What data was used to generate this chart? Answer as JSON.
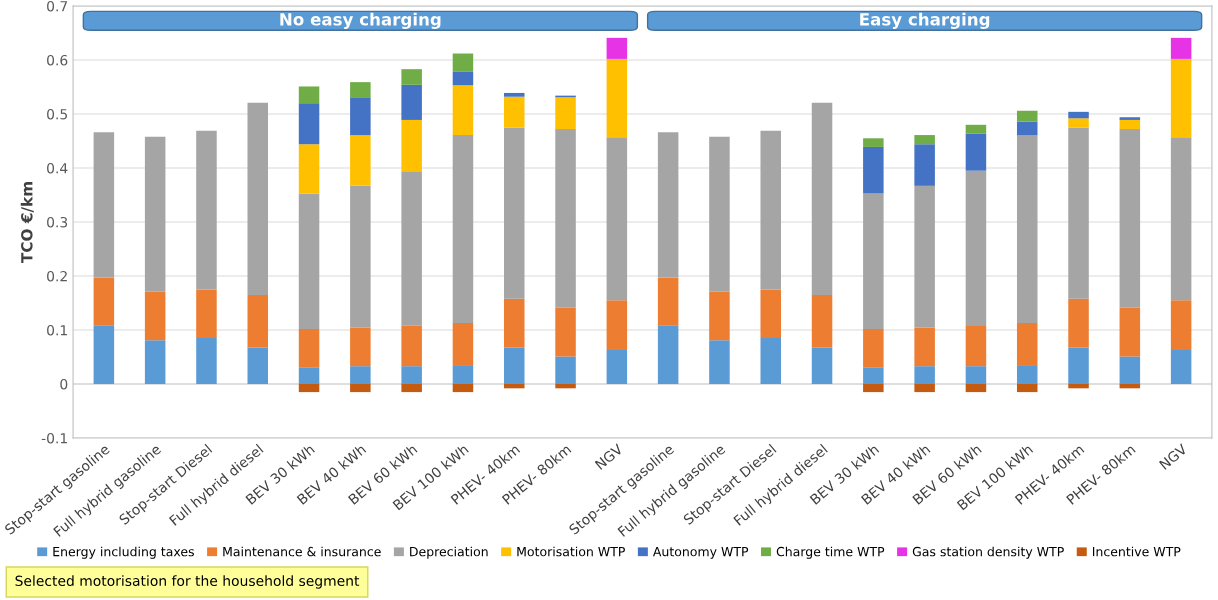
{
  "chart_data": {
    "type": "bar",
    "stacked": true,
    "ylabel": "TCO €/km",
    "categories": [
      "Stop-start gasoline",
      "Full hybrid gasoline",
      "Stop-start Diesel",
      "Full hybrid diesel",
      "BEV 30 kWh",
      "BEV 40 kWh",
      "BEV 60 kWh",
      "BEV 100 kWh",
      "PHEV- 40km",
      "PHEV- 80km",
      "NGV",
      "Stop-start gasoline",
      "Full hybrid gasoline",
      "Stop-start Diesel",
      "Full hybrid diesel",
      "BEV 30 kWh",
      "BEV 40 kWh",
      "BEV 60 kWh",
      "BEV 100 kWh",
      "PHEV- 40km",
      "PHEV- 80km",
      "NGV"
    ],
    "series": [
      {
        "name": "Energy including taxes",
        "color": "#5b9bd5",
        "values": [
          0.109,
          0.081,
          0.085,
          0.067,
          0.031,
          0.033,
          0.033,
          0.035,
          0.067,
          0.051,
          0.063,
          0.109,
          0.081,
          0.085,
          0.067,
          0.031,
          0.033,
          0.033,
          0.035,
          0.067,
          0.051,
          0.063
        ]
      },
      {
        "name": "Maintenance & insurance",
        "color": "#ed7d31",
        "values": [
          0.088,
          0.09,
          0.09,
          0.098,
          0.071,
          0.071,
          0.075,
          0.078,
          0.091,
          0.09,
          0.092,
          0.088,
          0.09,
          0.09,
          0.098,
          0.071,
          0.071,
          0.076,
          0.078,
          0.091,
          0.09,
          0.092
        ]
      },
      {
        "name": "Depreciation",
        "color": "#a5a5a5",
        "values": [
          0.269,
          0.287,
          0.294,
          0.356,
          0.251,
          0.263,
          0.286,
          0.348,
          0.317,
          0.331,
          0.302,
          0.269,
          0.287,
          0.294,
          0.356,
          0.251,
          0.263,
          0.286,
          0.348,
          0.317,
          0.331,
          0.302
        ]
      },
      {
        "name": "Motorisation WTP",
        "color": "#ffc000",
        "values": [
          null,
          null,
          null,
          null,
          0.091,
          0.094,
          0.095,
          0.092,
          0.057,
          0.059,
          0.145,
          null,
          null,
          null,
          null,
          null,
          null,
          null,
          null,
          0.017,
          0.017,
          0.145
        ]
      },
      {
        "name": "Autonomy WTP",
        "color": "#4472c4",
        "values": [
          null,
          null,
          null,
          null,
          0.076,
          0.07,
          0.065,
          0.025,
          0.007,
          0.003,
          null,
          null,
          null,
          null,
          null,
          0.086,
          0.077,
          0.069,
          0.025,
          0.012,
          0.005,
          null
        ]
      },
      {
        "name": "Charge time WTP",
        "color": "#70ad47",
        "values": [
          null,
          null,
          null,
          null,
          0.031,
          0.028,
          0.029,
          0.034,
          null,
          null,
          null,
          null,
          null,
          null,
          null,
          0.016,
          0.017,
          0.016,
          0.02,
          null,
          null,
          null
        ]
      },
      {
        "name": "Gas station density WTP",
        "color": "#e633e6",
        "values": [
          null,
          null,
          null,
          null,
          null,
          null,
          null,
          null,
          null,
          null,
          0.039,
          null,
          null,
          null,
          null,
          null,
          null,
          null,
          null,
          null,
          null,
          0.039
        ]
      },
      {
        "name": "Incentive WTP",
        "color": "#c55a11",
        "values": [
          null,
          null,
          null,
          null,
          -0.015,
          -0.015,
          -0.015,
          -0.015,
          -0.008,
          -0.008,
          null,
          null,
          null,
          null,
          null,
          -0.015,
          -0.015,
          -0.015,
          -0.015,
          -0.008,
          -0.008,
          null
        ]
      }
    ],
    "ylim": [
      -0.1,
      0.7
    ],
    "yticks": [
      {
        "value": -0.1,
        "label": "-0.1"
      },
      0,
      0.1,
      0.2,
      0.3,
      0.4,
      0.5,
      0.6,
      0.7
    ],
    "grid": "y",
    "legend": "bottom",
    "annotations": [
      "No easy charging",
      "Easy charging",
      "Selected motorisation for the household segment"
    ]
  }
}
